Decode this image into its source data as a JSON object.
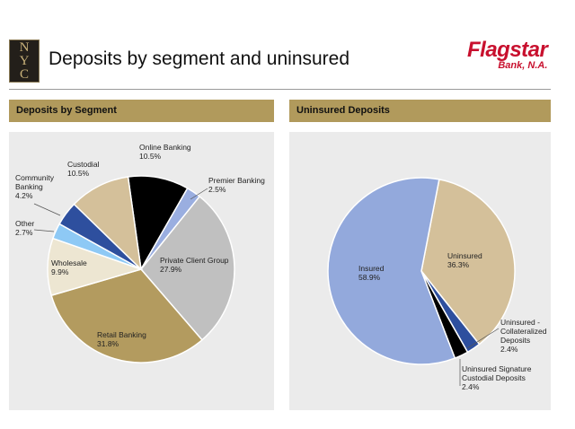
{
  "header": {
    "logo_text": "NYCB",
    "title": "Deposits by segment and uninsured",
    "brand": "Flagstar",
    "brand_sub": "Bank, N.A."
  },
  "chart_data": [
    {
      "type": "pie",
      "title": "Deposits by Segment",
      "slices": [
        {
          "label": "Online Banking",
          "value": 10.5,
          "display": "10.5%",
          "color": "#000000"
        },
        {
          "label": "Premier Banking",
          "value": 2.5,
          "display": "2.5%",
          "color": "#9aaee0"
        },
        {
          "label": "Private Client Group",
          "value": 27.9,
          "display": "27.9%",
          "color": "#c0c0c0"
        },
        {
          "label": "Retail Banking",
          "value": 31.8,
          "display": "31.8%",
          "color": "#b39b5f"
        },
        {
          "label": "Wholesale",
          "value": 9.9,
          "display": "9.9%",
          "color": "#ede6d2"
        },
        {
          "label": "Other",
          "value": 2.7,
          "display": "2.7%",
          "color": "#8ec9f5"
        },
        {
          "label": "Community Banking",
          "value": 4.2,
          "display": "4.2%",
          "color": "#2e4f9e"
        },
        {
          "label": "Custodial",
          "value": 10.5,
          "display": "10.5%",
          "color": "#d4c09a"
        }
      ]
    },
    {
      "type": "pie",
      "title": "Uninsured Deposits",
      "slices": [
        {
          "label": "Uninsured",
          "value": 36.3,
          "display": "36.3%",
          "color": "#d4c09a"
        },
        {
          "label": "Uninsured - Collateralized Deposits",
          "value": 2.4,
          "display": "2.4%",
          "color": "#2e4f9e"
        },
        {
          "label": "Uninsured Signature Custodial Deposits",
          "value": 2.4,
          "display": "2.4%",
          "color": "#000000"
        },
        {
          "label": "Insured",
          "value": 58.9,
          "display": "58.9%",
          "color": "#93a9dc"
        }
      ]
    }
  ]
}
